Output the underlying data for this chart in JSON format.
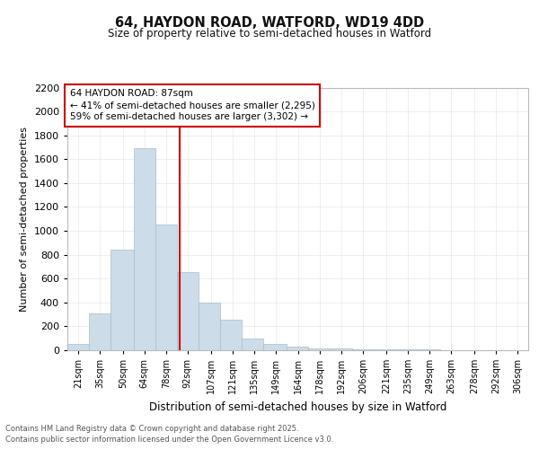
{
  "title": "64, HAYDON ROAD, WATFORD, WD19 4DD",
  "subtitle": "Size of property relative to semi-detached houses in Watford",
  "xlabel": "Distribution of semi-detached houses by size in Watford",
  "ylabel": "Number of semi-detached properties",
  "property_size": 87,
  "annotation_title": "64 HAYDON ROAD: 87sqm",
  "annotation_line1": "← 41% of semi-detached houses are smaller (2,295)",
  "annotation_line2": "59% of semi-detached houses are larger (3,302) →",
  "footer_line1": "Contains HM Land Registry data © Crown copyright and database right 2025.",
  "footer_line2": "Contains public sector information licensed under the Open Government Licence v3.0.",
  "bar_color": "#ccdce8",
  "bar_edge_color": "#aabccc",
  "vline_color": "#cc0000",
  "grid_color": "#e8e8e8",
  "background_color": "#ffffff",
  "bin_edges": [
    14,
    28,
    42,
    57,
    71,
    85,
    99,
    113,
    127,
    141,
    156,
    170,
    184,
    199,
    213,
    227,
    241,
    256,
    270,
    284,
    299,
    313
  ],
  "bin_values": [
    55,
    305,
    840,
    1690,
    1050,
    655,
    400,
    255,
    100,
    55,
    28,
    18,
    14,
    10,
    7,
    5,
    4,
    3,
    2,
    1,
    1
  ],
  "tick_labels": [
    "21sqm",
    "35sqm",
    "50sqm",
    "64sqm",
    "78sqm",
    "92sqm",
    "107sqm",
    "121sqm",
    "135sqm",
    "149sqm",
    "164sqm",
    "178sqm",
    "192sqm",
    "206sqm",
    "221sqm",
    "235sqm",
    "249sqm",
    "263sqm",
    "278sqm",
    "292sqm",
    "306sqm"
  ],
  "tick_positions": [
    21,
    35,
    50,
    64,
    78,
    92,
    107,
    121,
    135,
    149,
    164,
    178,
    192,
    206,
    221,
    235,
    249,
    263,
    278,
    292,
    306
  ],
  "yticks": [
    0,
    200,
    400,
    600,
    800,
    1000,
    1200,
    1400,
    1600,
    1800,
    2000,
    2200
  ],
  "ylim": [
    0,
    2200
  ],
  "xlim": [
    14,
    313
  ]
}
